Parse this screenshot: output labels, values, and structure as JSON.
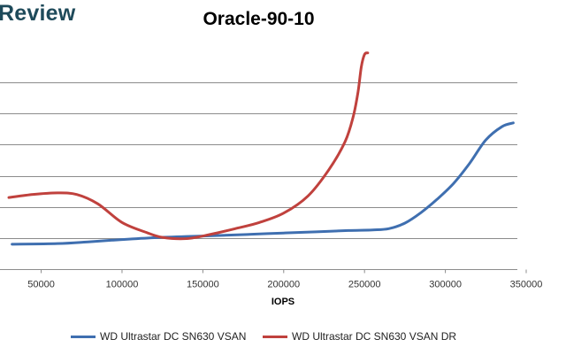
{
  "brand": "Review",
  "chart_data": {
    "type": "line",
    "title": "Oracle-90-10",
    "xlabel": "IOPS",
    "ylabel": "",
    "xlim": [
      30000,
      350000
    ],
    "ylim": [
      0,
      7
    ],
    "xticks": [
      50000,
      100000,
      150000,
      200000,
      250000,
      300000,
      350000
    ],
    "xtick_labels": [
      "50000",
      "100000",
      "150000",
      "200000",
      "250000",
      "300000",
      "350000"
    ],
    "grid": true,
    "legend_position": "bottom",
    "series": [
      {
        "name": "WD Ultrastar DC SN630 VSAN",
        "color": "#3f6fb0",
        "points": [
          [
            32000,
            0.8
          ],
          [
            60000,
            0.82
          ],
          [
            80000,
            0.88
          ],
          [
            100000,
            0.95
          ],
          [
            120000,
            1.01
          ],
          [
            140000,
            1.05
          ],
          [
            160000,
            1.08
          ],
          [
            180000,
            1.12
          ],
          [
            200000,
            1.16
          ],
          [
            220000,
            1.2
          ],
          [
            240000,
            1.24
          ],
          [
            255000,
            1.26
          ],
          [
            265000,
            1.3
          ],
          [
            275000,
            1.48
          ],
          [
            285000,
            1.82
          ],
          [
            295000,
            2.25
          ],
          [
            305000,
            2.75
          ],
          [
            315000,
            3.4
          ],
          [
            325000,
            4.15
          ],
          [
            335000,
            4.58
          ],
          [
            342000,
            4.7
          ]
        ]
      },
      {
        "name": "WD Ultrastar DC SN630 VSAN DR",
        "color": "#c0413d",
        "points": [
          [
            30000,
            2.3
          ],
          [
            45000,
            2.4
          ],
          [
            60000,
            2.45
          ],
          [
            72000,
            2.4
          ],
          [
            85000,
            2.1
          ],
          [
            100000,
            1.5
          ],
          [
            115000,
            1.18
          ],
          [
            125000,
            1.02
          ],
          [
            140000,
            0.98
          ],
          [
            155000,
            1.12
          ],
          [
            170000,
            1.3
          ],
          [
            185000,
            1.5
          ],
          [
            200000,
            1.8
          ],
          [
            215000,
            2.35
          ],
          [
            228000,
            3.2
          ],
          [
            238000,
            4.1
          ],
          [
            243000,
            4.9
          ],
          [
            246000,
            5.7
          ],
          [
            248000,
            6.5
          ],
          [
            250000,
            6.9
          ],
          [
            252000,
            6.95
          ]
        ]
      }
    ]
  }
}
